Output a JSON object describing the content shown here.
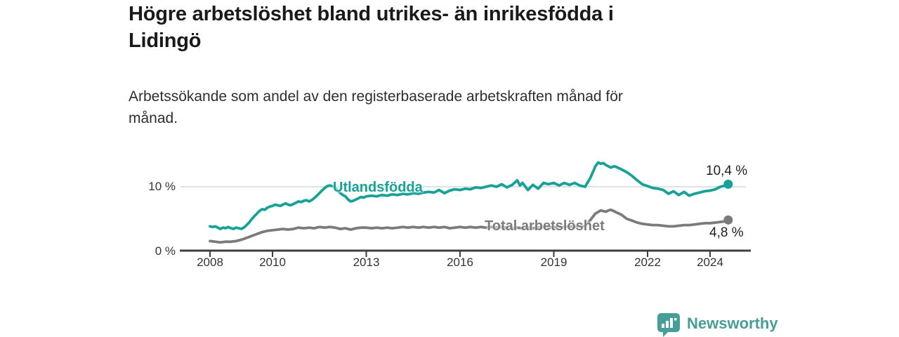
{
  "title": {
    "lines": [
      "Högre arbetslöshet bland utrikes- än inrikesfödda i",
      "Lidingö"
    ]
  },
  "subtitle": {
    "lines": [
      "Arbetssökande som andel av den registerbaserade arbetskraften månad för",
      "månad."
    ]
  },
  "chart_data": {
    "type": "line",
    "title": "Högre arbetslöshet bland utrikes- än inrikesfödda i Lidingö",
    "subtitle": "Arbetssökande som andel av den registerbaserade arbetskraften månad för månad.",
    "x_unit": "year_decimal",
    "xlim": [
      2008,
      2024.9
    ],
    "ylim": [
      0,
      14.5
    ],
    "grid": "horizontal gridline at 10% only",
    "legend_position": "inline-labels-on-lines",
    "xticklabels": [
      "2008",
      "2010",
      "2013",
      "2016",
      "2019",
      "2022",
      "2024"
    ],
    "xtick_years": [
      2008,
      2010,
      2013,
      2016,
      2019,
      2022,
      2024
    ],
    "yticks": [
      {
        "value": 0,
        "label": "0 %"
      },
      {
        "value": 10,
        "label": "10 %"
      }
    ],
    "series": [
      {
        "name": "Utlandsfödda",
        "color": "#16a296",
        "end_label": "10,4 %",
        "end_value": 10.4,
        "points": [
          [
            2008.0,
            3.8
          ],
          [
            2008.08,
            3.7
          ],
          [
            2008.17,
            3.8
          ],
          [
            2008.25,
            3.6
          ],
          [
            2008.33,
            3.4
          ],
          [
            2008.42,
            3.6
          ],
          [
            2008.5,
            3.5
          ],
          [
            2008.58,
            3.7
          ],
          [
            2008.67,
            3.5
          ],
          [
            2008.75,
            3.4
          ],
          [
            2008.83,
            3.6
          ],
          [
            2008.92,
            3.5
          ],
          [
            2009.0,
            3.4
          ],
          [
            2009.08,
            3.6
          ],
          [
            2009.17,
            4.0
          ],
          [
            2009.25,
            4.4
          ],
          [
            2009.33,
            4.9
          ],
          [
            2009.42,
            5.4
          ],
          [
            2009.5,
            5.8
          ],
          [
            2009.58,
            6.2
          ],
          [
            2009.67,
            6.5
          ],
          [
            2009.75,
            6.4
          ],
          [
            2009.83,
            6.7
          ],
          [
            2009.92,
            6.9
          ],
          [
            2010.0,
            7.0
          ],
          [
            2010.08,
            7.2
          ],
          [
            2010.17,
            7.1
          ],
          [
            2010.25,
            7.0
          ],
          [
            2010.33,
            7.2
          ],
          [
            2010.42,
            7.4
          ],
          [
            2010.5,
            7.2
          ],
          [
            2010.58,
            7.1
          ],
          [
            2010.67,
            7.3
          ],
          [
            2010.75,
            7.5
          ],
          [
            2010.83,
            7.7
          ],
          [
            2010.92,
            7.6
          ],
          [
            2011.0,
            7.8
          ],
          [
            2011.08,
            7.9
          ],
          [
            2011.17,
            7.7
          ],
          [
            2011.25,
            7.9
          ],
          [
            2011.33,
            8.2
          ],
          [
            2011.42,
            8.6
          ],
          [
            2011.5,
            9.0
          ],
          [
            2011.58,
            9.4
          ],
          [
            2011.67,
            9.8
          ],
          [
            2011.75,
            10.1
          ],
          [
            2011.83,
            10.2
          ],
          [
            2011.92,
            10.1
          ],
          [
            2012.0,
            9.9
          ],
          [
            2012.08,
            9.4
          ],
          [
            2012.17,
            9.0
          ],
          [
            2012.25,
            8.7
          ],
          [
            2012.33,
            8.5
          ],
          [
            2012.42,
            8.0
          ],
          [
            2012.5,
            7.7
          ],
          [
            2012.58,
            7.8
          ],
          [
            2012.67,
            8.0
          ],
          [
            2012.75,
            8.2
          ],
          [
            2012.83,
            8.4
          ],
          [
            2012.92,
            8.3
          ],
          [
            2013.0,
            8.5
          ],
          [
            2013.17,
            8.6
          ],
          [
            2013.33,
            8.5
          ],
          [
            2013.5,
            8.7
          ],
          [
            2013.67,
            8.6
          ],
          [
            2013.83,
            8.8
          ],
          [
            2014.0,
            8.7
          ],
          [
            2014.17,
            8.9
          ],
          [
            2014.33,
            8.8
          ],
          [
            2014.5,
            9.0
          ],
          [
            2014.67,
            8.9
          ],
          [
            2014.83,
            9.1
          ],
          [
            2015.0,
            9.2
          ],
          [
            2015.17,
            9.1
          ],
          [
            2015.33,
            9.5
          ],
          [
            2015.5,
            9.0
          ],
          [
            2015.67,
            9.4
          ],
          [
            2015.83,
            9.6
          ],
          [
            2016.0,
            9.5
          ],
          [
            2016.17,
            9.7
          ],
          [
            2016.33,
            9.6
          ],
          [
            2016.5,
            9.9
          ],
          [
            2016.67,
            9.8
          ],
          [
            2016.83,
            10.0
          ],
          [
            2017.0,
            10.2
          ],
          [
            2017.17,
            10.0
          ],
          [
            2017.33,
            10.4
          ],
          [
            2017.5,
            9.9
          ],
          [
            2017.67,
            10.3
          ],
          [
            2017.83,
            11.0
          ],
          [
            2017.92,
            10.2
          ],
          [
            2018.0,
            10.6
          ],
          [
            2018.17,
            9.5
          ],
          [
            2018.33,
            10.3
          ],
          [
            2018.5,
            9.7
          ],
          [
            2018.67,
            10.6
          ],
          [
            2018.83,
            10.4
          ],
          [
            2019.0,
            10.6
          ],
          [
            2019.17,
            10.2
          ],
          [
            2019.33,
            10.6
          ],
          [
            2019.5,
            10.3
          ],
          [
            2019.67,
            10.6
          ],
          [
            2019.83,
            10.2
          ],
          [
            2020.0,
            10.0
          ],
          [
            2020.17,
            11.4
          ],
          [
            2020.33,
            13.2
          ],
          [
            2020.42,
            13.8
          ],
          [
            2020.5,
            13.6
          ],
          [
            2020.58,
            13.7
          ],
          [
            2020.67,
            13.4
          ],
          [
            2020.75,
            13.2
          ],
          [
            2020.83,
            13.0
          ],
          [
            2020.92,
            13.2
          ],
          [
            2021.0,
            13.1
          ],
          [
            2021.17,
            12.7
          ],
          [
            2021.33,
            12.3
          ],
          [
            2021.5,
            11.7
          ],
          [
            2021.67,
            11.0
          ],
          [
            2021.83,
            10.4
          ],
          [
            2022.0,
            10.1
          ],
          [
            2022.17,
            9.8
          ],
          [
            2022.33,
            9.7
          ],
          [
            2022.5,
            9.5
          ],
          [
            2022.67,
            8.9
          ],
          [
            2022.83,
            9.3
          ],
          [
            2023.0,
            8.7
          ],
          [
            2023.17,
            9.2
          ],
          [
            2023.33,
            8.6
          ],
          [
            2023.5,
            8.9
          ],
          [
            2023.67,
            9.1
          ],
          [
            2023.83,
            9.3
          ],
          [
            2024.0,
            9.4
          ],
          [
            2024.17,
            9.6
          ],
          [
            2024.33,
            10.0
          ],
          [
            2024.5,
            10.2
          ],
          [
            2024.58,
            10.4
          ]
        ]
      },
      {
        "name": "Total arbetslöshet",
        "color": "#7b7b7b",
        "end_label": "4,8 %",
        "end_value": 4.8,
        "points": [
          [
            2008.0,
            1.5
          ],
          [
            2008.17,
            1.4
          ],
          [
            2008.33,
            1.3
          ],
          [
            2008.5,
            1.4
          ],
          [
            2008.67,
            1.4
          ],
          [
            2008.83,
            1.5
          ],
          [
            2009.0,
            1.7
          ],
          [
            2009.17,
            2.0
          ],
          [
            2009.33,
            2.3
          ],
          [
            2009.5,
            2.6
          ],
          [
            2009.67,
            2.9
          ],
          [
            2009.83,
            3.1
          ],
          [
            2010.0,
            3.2
          ],
          [
            2010.17,
            3.3
          ],
          [
            2010.33,
            3.4
          ],
          [
            2010.5,
            3.3
          ],
          [
            2010.67,
            3.4
          ],
          [
            2010.83,
            3.6
          ],
          [
            2011.0,
            3.5
          ],
          [
            2011.17,
            3.6
          ],
          [
            2011.33,
            3.5
          ],
          [
            2011.5,
            3.7
          ],
          [
            2011.67,
            3.6
          ],
          [
            2011.83,
            3.7
          ],
          [
            2012.0,
            3.6
          ],
          [
            2012.17,
            3.4
          ],
          [
            2012.33,
            3.5
          ],
          [
            2012.5,
            3.3
          ],
          [
            2012.67,
            3.5
          ],
          [
            2012.83,
            3.6
          ],
          [
            2013.0,
            3.6
          ],
          [
            2013.17,
            3.5
          ],
          [
            2013.33,
            3.6
          ],
          [
            2013.5,
            3.5
          ],
          [
            2013.67,
            3.6
          ],
          [
            2013.83,
            3.5
          ],
          [
            2014.0,
            3.6
          ],
          [
            2014.17,
            3.7
          ],
          [
            2014.33,
            3.6
          ],
          [
            2014.5,
            3.7
          ],
          [
            2014.67,
            3.6
          ],
          [
            2014.83,
            3.7
          ],
          [
            2015.0,
            3.6
          ],
          [
            2015.17,
            3.7
          ],
          [
            2015.33,
            3.6
          ],
          [
            2015.5,
            3.7
          ],
          [
            2015.67,
            3.5
          ],
          [
            2015.83,
            3.6
          ],
          [
            2016.0,
            3.7
          ],
          [
            2016.17,
            3.6
          ],
          [
            2016.33,
            3.7
          ],
          [
            2016.5,
            3.6
          ],
          [
            2016.67,
            3.7
          ],
          [
            2016.83,
            3.6
          ],
          [
            2017.0,
            3.7
          ],
          [
            2017.17,
            3.6
          ],
          [
            2017.33,
            3.7
          ],
          [
            2017.5,
            3.6
          ],
          [
            2017.67,
            3.5
          ],
          [
            2017.83,
            3.6
          ],
          [
            2018.0,
            3.5
          ],
          [
            2018.17,
            3.6
          ],
          [
            2018.33,
            3.5
          ],
          [
            2018.5,
            3.6
          ],
          [
            2018.67,
            3.7
          ],
          [
            2018.83,
            3.6
          ],
          [
            2019.0,
            3.7
          ],
          [
            2019.17,
            3.6
          ],
          [
            2019.33,
            3.7
          ],
          [
            2019.5,
            3.8
          ],
          [
            2019.67,
            3.7
          ],
          [
            2019.83,
            3.8
          ],
          [
            2020.0,
            3.8
          ],
          [
            2020.17,
            4.8
          ],
          [
            2020.33,
            5.8
          ],
          [
            2020.5,
            6.3
          ],
          [
            2020.58,
            6.2
          ],
          [
            2020.67,
            6.1
          ],
          [
            2020.75,
            6.3
          ],
          [
            2020.83,
            6.4
          ],
          [
            2020.92,
            6.2
          ],
          [
            2021.0,
            6.0
          ],
          [
            2021.17,
            5.6
          ],
          [
            2021.33,
            5.0
          ],
          [
            2021.5,
            4.7
          ],
          [
            2021.67,
            4.4
          ],
          [
            2021.83,
            4.2
          ],
          [
            2022.0,
            4.1
          ],
          [
            2022.17,
            4.0
          ],
          [
            2022.33,
            4.0
          ],
          [
            2022.5,
            3.9
          ],
          [
            2022.67,
            3.8
          ],
          [
            2022.83,
            3.8
          ],
          [
            2023.0,
            3.9
          ],
          [
            2023.17,
            4.0
          ],
          [
            2023.33,
            4.0
          ],
          [
            2023.5,
            4.1
          ],
          [
            2023.67,
            4.2
          ],
          [
            2023.83,
            4.3
          ],
          [
            2024.0,
            4.3
          ],
          [
            2024.17,
            4.4
          ],
          [
            2024.33,
            4.5
          ],
          [
            2024.5,
            4.6
          ],
          [
            2024.58,
            4.8
          ]
        ]
      }
    ]
  },
  "colors": {
    "accent_teal": "#16a296",
    "series_gray": "#7b7b7b",
    "axis": "#3f3f3f",
    "gridline": "#d8d8d8",
    "text_dark": "#1a1a1a",
    "tick_text": "#333333",
    "logo_teal": "#469e97"
  },
  "branding": {
    "logo_text": "Newsworthy",
    "logo_icon": "bar-chart-speech-bubble"
  }
}
